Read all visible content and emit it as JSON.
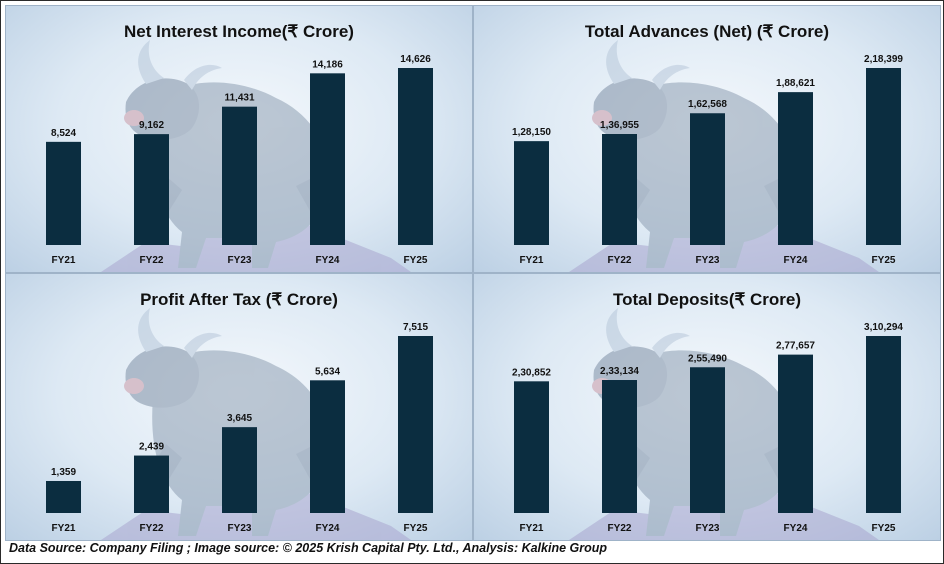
{
  "footer": {
    "text": "Data Source: Company Filing ; Image source: © 2025 Krish Capital Pty. Ltd., Analysis: Kalkine Group"
  },
  "background_art": "bull-illustration",
  "colors": {
    "bar": "#0b2d40",
    "panel_bg": "#dde9f4"
  },
  "chart_data": [
    {
      "type": "bar",
      "title": "Net Interest Income(₹ Crore)",
      "categories": [
        "FY21",
        "FY22",
        "FY23",
        "FY24",
        "FY25"
      ],
      "values": [
        8524,
        9162,
        11431,
        14186,
        14626
      ],
      "labels": [
        "8,524",
        "9,162",
        "11,431",
        "14,186",
        "14,626"
      ],
      "xlabel": "",
      "ylabel": "",
      "grid": false
    },
    {
      "type": "bar",
      "title": "Total Advances (Net) (₹ Crore)",
      "categories": [
        "FY21",
        "FY22",
        "FY23",
        "FY24",
        "FY25"
      ],
      "values": [
        128150,
        136955,
        162568,
        188621,
        218399
      ],
      "labels": [
        "1,28,150",
        "1,36,955",
        "1,62,568",
        "1,88,621",
        "2,18,399"
      ],
      "xlabel": "",
      "ylabel": "",
      "grid": false
    },
    {
      "type": "bar",
      "title": "Profit After Tax (₹ Crore)",
      "categories": [
        "FY21",
        "FY22",
        "FY23",
        "FY24",
        "FY25"
      ],
      "values": [
        1359,
        2439,
        3645,
        5634,
        7515
      ],
      "labels": [
        "1,359",
        "2,439",
        "3,645",
        "5,634",
        "7,515"
      ],
      "xlabel": "",
      "ylabel": "",
      "grid": false
    },
    {
      "type": "bar",
      "title": "Total Deposits(₹ Crore)",
      "categories": [
        "FY21",
        "FY22",
        "FY23",
        "FY24",
        "FY25"
      ],
      "values": [
        230852,
        233134,
        255490,
        277657,
        310294
      ],
      "labels": [
        "2,30,852",
        "2,33,134",
        "2,55,490",
        "2,77,657",
        "3,10,294"
      ],
      "xlabel": "",
      "ylabel": "",
      "grid": false
    }
  ]
}
